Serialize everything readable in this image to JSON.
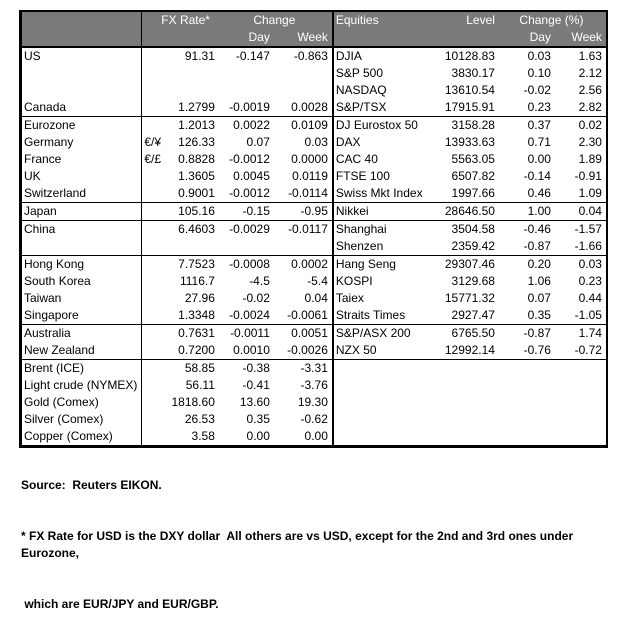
{
  "header": {
    "fx_rate": "FX Rate*",
    "change": "Change",
    "day": "Day",
    "week": "Week",
    "equities": "Equities",
    "level": "Level",
    "change_pct": "Change (%)"
  },
  "colors": {
    "header_bg": "#7a7a7a",
    "header_text": "#ffffff",
    "border": "#000000",
    "text": "#000000"
  },
  "rows": [
    {
      "label": "US",
      "pair": "",
      "rate": "91.31",
      "day": "-0.147",
      "week": "-0.863",
      "equity": "DJIA",
      "level": "10128.83",
      "eq_day": "0.03",
      "eq_week": "1.63",
      "indent": 0,
      "section_end": false
    },
    {
      "label": "",
      "pair": "",
      "rate": "",
      "day": "",
      "week": "",
      "equity": "S&P 500",
      "level": "3830.17",
      "eq_day": "0.10",
      "eq_week": "2.12",
      "indent": 0,
      "section_end": false
    },
    {
      "label": "",
      "pair": "",
      "rate": "",
      "day": "",
      "week": "",
      "equity": "NASDAQ",
      "level": "13610.54",
      "eq_day": "-0.02",
      "eq_week": "2.56",
      "indent": 0,
      "section_end": false
    },
    {
      "label": "Canada",
      "pair": "",
      "rate": "1.2799",
      "day": "-0.0019",
      "week": "0.0028",
      "equity": "S&P/TSX",
      "level": "17915.91",
      "eq_day": "0.23",
      "eq_week": "2.82",
      "indent": 0,
      "section_end": true
    },
    {
      "label": "Eurozone",
      "pair": "",
      "rate": "1.2013",
      "day": "0.0022",
      "week": "0.0109",
      "equity": "DJ Eurostox 50",
      "level": "3158.28",
      "eq_day": "0.37",
      "eq_week": "0.02",
      "indent": 0,
      "section_end": false
    },
    {
      "label": "Germany",
      "pair": "€/¥",
      "rate": "126.33",
      "day": "0.07",
      "week": "0.03",
      "equity": "DAX",
      "level": "13933.63",
      "eq_day": "0.71",
      "eq_week": "2.30",
      "indent": 2,
      "section_end": false
    },
    {
      "label": "France",
      "pair": "€/£",
      "rate": "0.8828",
      "day": "-0.0012",
      "week": "0.0000",
      "equity": "CAC 40",
      "level": "5563.05",
      "eq_day": "0.00",
      "eq_week": "1.89",
      "indent": 2,
      "section_end": false
    },
    {
      "label": "UK",
      "pair": "",
      "rate": "1.3605",
      "day": "0.0045",
      "week": "0.0119",
      "equity": "FTSE 100",
      "level": "6507.82",
      "eq_day": "-0.14",
      "eq_week": "-0.91",
      "indent": 0,
      "section_end": false
    },
    {
      "label": "Switzerland",
      "pair": "",
      "rate": "0.9001",
      "day": "-0.0012",
      "week": "-0.0114",
      "equity": "Swiss Mkt Index",
      "level": "1997.66",
      "eq_day": "0.46",
      "eq_week": "1.09",
      "indent": 1,
      "section_end": true
    },
    {
      "label": "Japan",
      "pair": "",
      "rate": "105.16",
      "day": "-0.15",
      "week": "-0.95",
      "equity": "Nikkei",
      "level": "28646.50",
      "eq_day": "1.00",
      "eq_week": "0.04",
      "indent": 0,
      "section_end": true
    },
    {
      "label": "China",
      "pair": "",
      "rate": "6.4603",
      "day": "-0.0029",
      "week": "-0.0117",
      "equity": "Shanghai",
      "level": "3504.58",
      "eq_day": "-0.46",
      "eq_week": "-1.57",
      "indent": 0,
      "section_end": false
    },
    {
      "label": "",
      "pair": "",
      "rate": "",
      "day": "",
      "week": "",
      "equity": "Shenzen",
      "level": "2359.42",
      "eq_day": "-0.87",
      "eq_week": "-1.66",
      "indent": 0,
      "section_end": true
    },
    {
      "label": "Hong Kong",
      "pair": "",
      "rate": "7.7523",
      "day": "-0.0008",
      "week": "0.0002",
      "equity": "Hang Seng",
      "level": "29307.46",
      "eq_day": "0.20",
      "eq_week": "0.03",
      "indent": 0,
      "section_end": false
    },
    {
      "label": "South Korea",
      "pair": "",
      "rate": "1116.7",
      "day": "-4.5",
      "week": "-5.4",
      "equity": "KOSPI",
      "level": "3129.68",
      "eq_day": "1.06",
      "eq_week": "0.23",
      "indent": 1,
      "section_end": false
    },
    {
      "label": "Taiwan",
      "pair": "",
      "rate": "27.96",
      "day": "-0.02",
      "week": "0.04",
      "equity": "Taiex",
      "level": "15771.32",
      "eq_day": "0.07",
      "eq_week": "0.44",
      "indent": 0,
      "section_end": false
    },
    {
      "label": "Singapore",
      "pair": "",
      "rate": "1.3348",
      "day": "-0.0024",
      "week": "-0.0061",
      "equity": "Straits Times",
      "level": "2927.47",
      "eq_day": "0.35",
      "eq_week": "-1.05",
      "indent": 1,
      "section_end": true
    },
    {
      "label": "Australia",
      "pair": "",
      "rate": "0.7631",
      "day": "-0.0011",
      "week": "0.0051",
      "equity": "S&P/ASX 200",
      "level": "6765.50",
      "eq_day": "-0.87",
      "eq_week": "1.74",
      "indent": 0,
      "section_end": false
    },
    {
      "label": "New Zealand",
      "pair": "",
      "rate": "0.7200",
      "day": "0.0010",
      "week": "-0.0026",
      "equity": "NZX 50",
      "level": "12992.14",
      "eq_day": "-0.76",
      "eq_week": "-0.72",
      "indent": 0,
      "section_end": true
    },
    {
      "label": "Brent (ICE)",
      "pair": "",
      "rate": "58.85",
      "day": "-0.38",
      "week": "-3.31",
      "equity": "",
      "level": "",
      "eq_day": "",
      "eq_week": "",
      "indent": 0,
      "section_end": false
    },
    {
      "label": "Light crude (NYMEX)",
      "pair": "",
      "rate": "56.11",
      "day": "-0.41",
      "week": "-3.76",
      "equity": "",
      "level": "",
      "eq_day": "",
      "eq_week": "",
      "indent": 0,
      "section_end": false
    },
    {
      "label": "Gold (Comex)",
      "pair": "",
      "rate": "1818.60",
      "day": "13.60",
      "week": "19.30",
      "equity": "",
      "level": "",
      "eq_day": "",
      "eq_week": "",
      "indent": 0,
      "section_end": false
    },
    {
      "label": "Silver (Comex)",
      "pair": "",
      "rate": "26.53",
      "day": "0.35",
      "week": "-0.62",
      "equity": "",
      "level": "",
      "eq_day": "",
      "eq_week": "",
      "indent": 1,
      "section_end": false
    },
    {
      "label": "Copper (Comex)",
      "pair": "",
      "rate": "3.58",
      "day": "0.00",
      "week": "0.00",
      "equity": "",
      "level": "",
      "eq_day": "",
      "eq_week": "",
      "indent": 0,
      "section_end": false
    }
  ],
  "footer": {
    "source": "Source:  Reuters EIKON.",
    "footnote_line1": "* FX Rate for USD is the DXY dollar  All others are vs USD, except for the 2nd and 3rd ones under Eurozone,",
    "footnote_line2": " which are EUR/JPY and EUR/GBP."
  }
}
